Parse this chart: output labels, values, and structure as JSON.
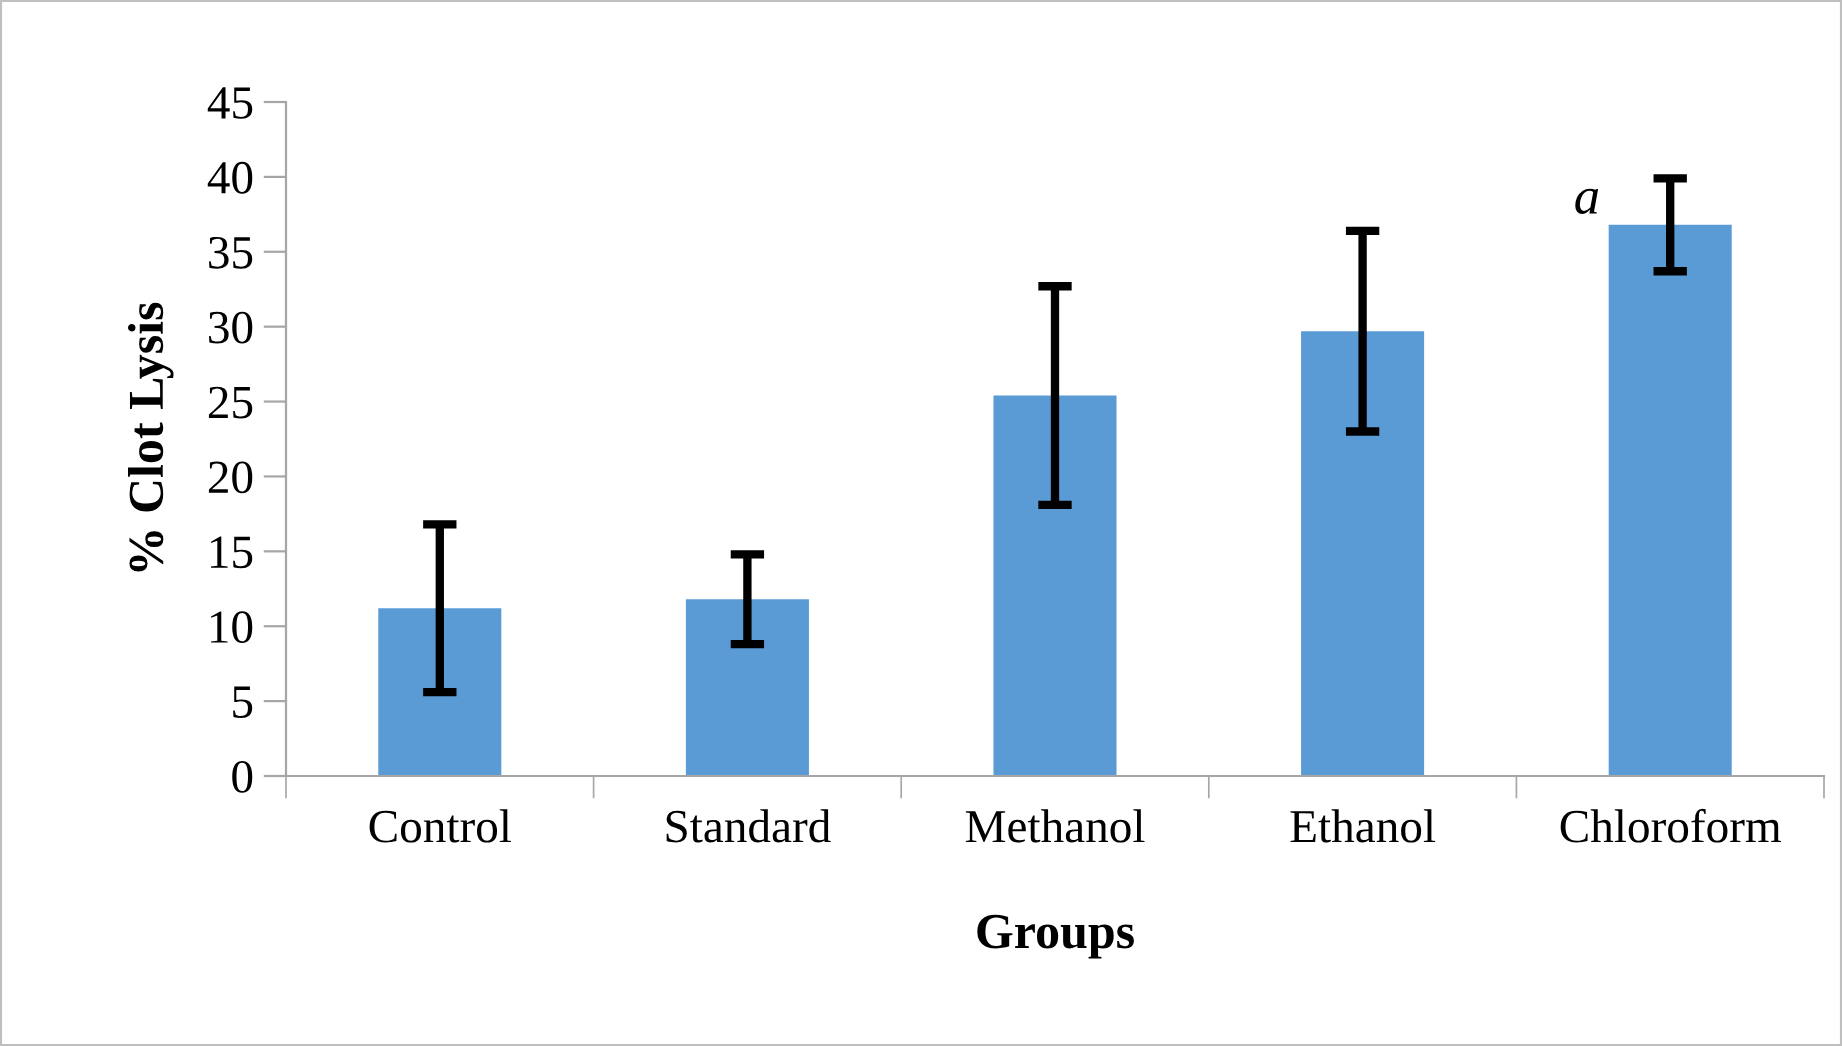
{
  "chart_data": {
    "type": "bar",
    "xlabel": "Groups",
    "ylabel": "% Clot Lysis",
    "categories": [
      "Control",
      "Standard",
      "Methanol",
      "Ethanol",
      "Chloroform"
    ],
    "values": [
      11.2,
      11.8,
      25.4,
      29.7,
      36.8
    ],
    "errors": [
      5.6,
      3.0,
      7.3,
      6.7,
      3.1
    ],
    "color": "#5b9bd5",
    "ylim": [
      0,
      45
    ],
    "yticks": [
      0,
      5,
      10,
      15,
      20,
      25,
      30,
      35,
      40,
      45
    ],
    "grid": false,
    "annotations": [
      {
        "text": "a",
        "x": "Chloroform",
        "y": 36.8
      }
    ]
  }
}
